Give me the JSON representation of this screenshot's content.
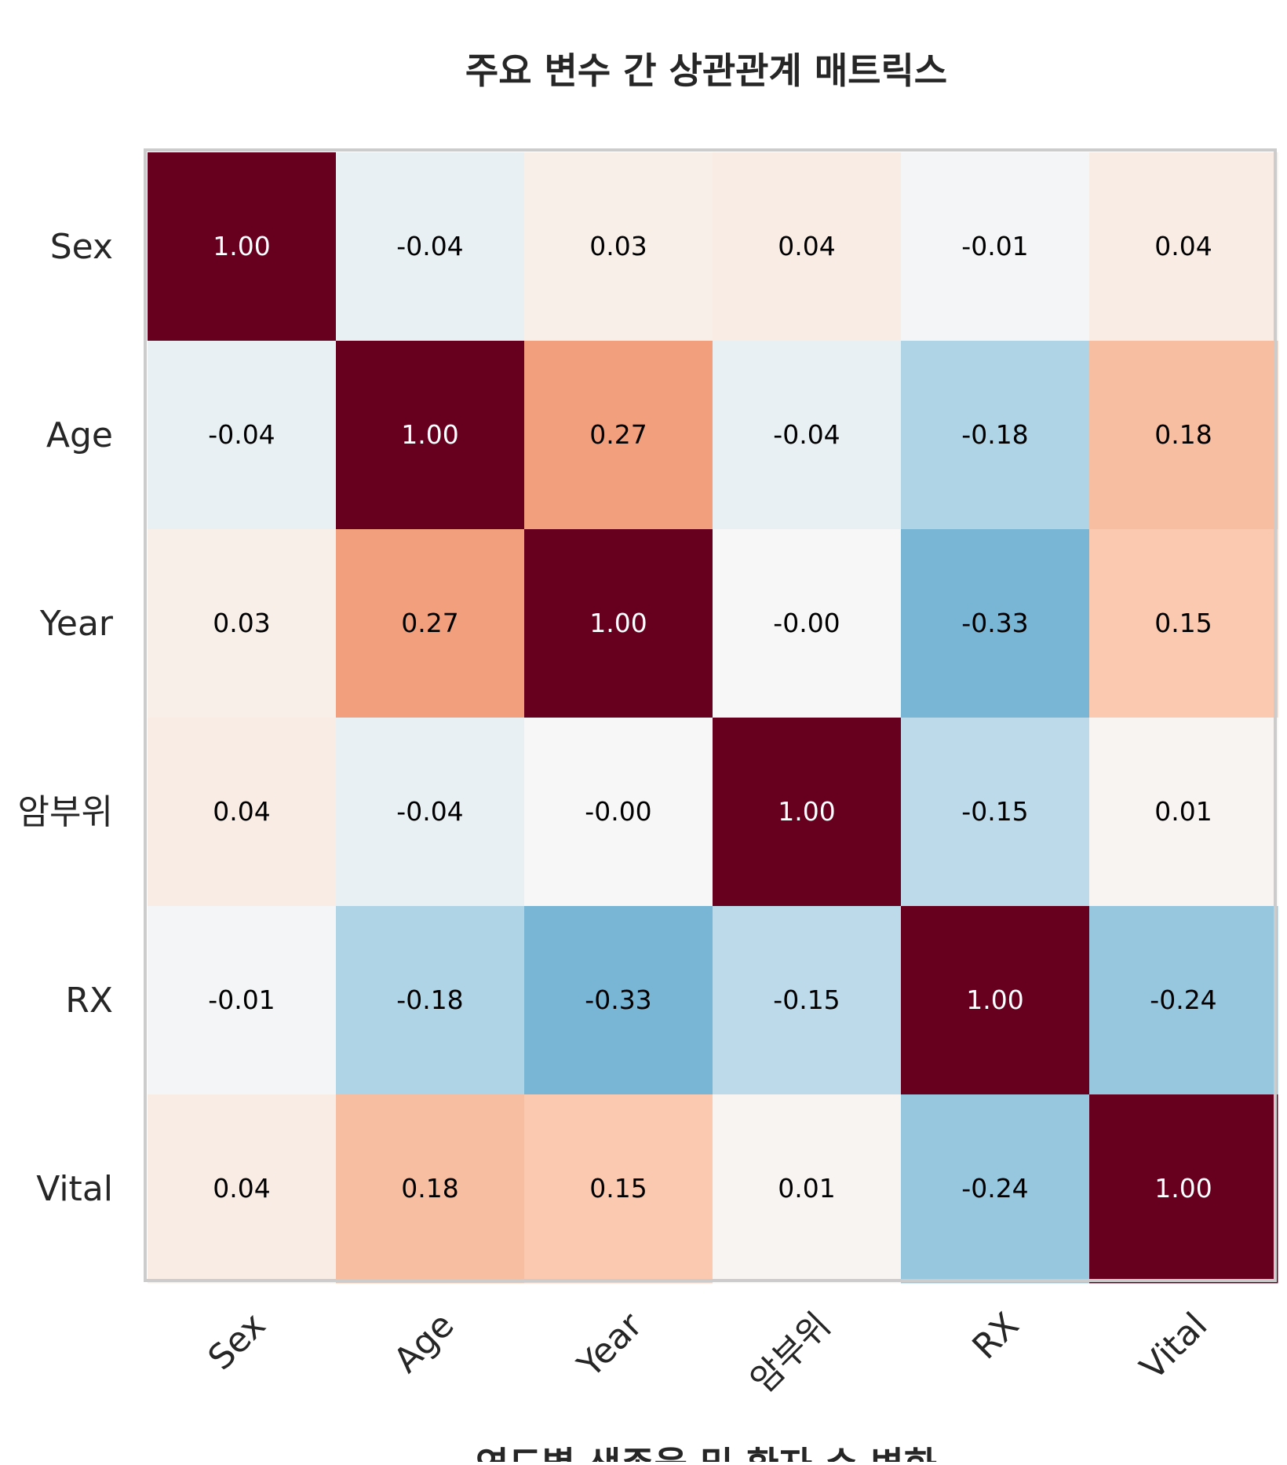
{
  "chart_data": {
    "type": "heatmap",
    "title": "주요 변수 간 상관관계 매트릭스",
    "next_title": "연도별 생존율 및 환자 수 변화",
    "rows": [
      "Sex",
      "Age",
      "Year",
      "암부위",
      "RX",
      "Vital"
    ],
    "columns": [
      "Sex",
      "Age",
      "Year",
      "암부위",
      "RX",
      "Vital"
    ],
    "values": [
      [
        1.0,
        -0.04,
        0.03,
        0.04,
        -0.01,
        0.04
      ],
      [
        -0.04,
        1.0,
        0.27,
        -0.04,
        -0.18,
        0.18
      ],
      [
        0.03,
        0.27,
        1.0,
        -0.0,
        -0.33,
        0.15
      ],
      [
        0.04,
        -0.04,
        -0.0,
        1.0,
        -0.15,
        0.01
      ],
      [
        -0.01,
        -0.18,
        -0.33,
        -0.15,
        1.0,
        -0.24
      ],
      [
        0.04,
        0.18,
        0.15,
        0.01,
        -0.24,
        1.0
      ]
    ],
    "value_labels": [
      [
        "1.00",
        "-0.04",
        "0.03",
        "0.04",
        "-0.01",
        "0.04"
      ],
      [
        "-0.04",
        "1.00",
        "0.27",
        "-0.04",
        "-0.18",
        "0.18"
      ],
      [
        "0.03",
        "0.27",
        "1.00",
        "-0.00",
        "-0.33",
        "0.15"
      ],
      [
        "0.04",
        "-0.04",
        "-0.00",
        "1.00",
        "-0.15",
        "0.01"
      ],
      [
        "-0.01",
        "-0.18",
        "-0.33",
        "-0.15",
        "1.00",
        "-0.24"
      ],
      [
        "0.04",
        "0.18",
        "0.15",
        "0.01",
        "-0.24",
        "1.00"
      ]
    ],
    "colormap": "RdBu_r",
    "vmin": -1,
    "vmax": 1,
    "colors": {
      "strong_positive": "#67001f",
      "neutral": "#f7f7f7",
      "moderate_negative": "#abd0e4",
      "frame": "#cccccc"
    },
    "annotate": true,
    "grid": false,
    "legend": "none"
  }
}
